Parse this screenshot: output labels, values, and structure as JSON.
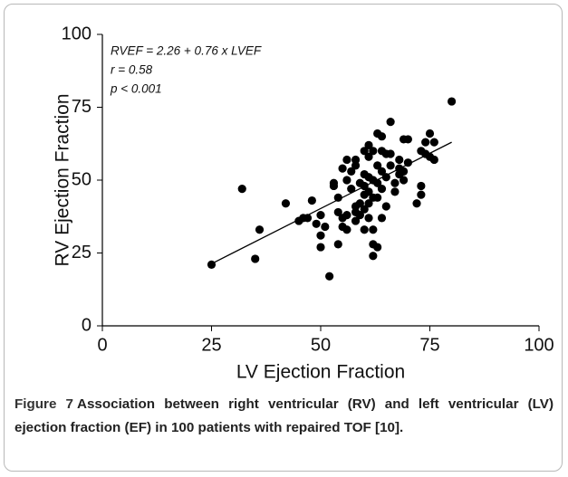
{
  "chart_data": {
    "type": "scatter",
    "x_label": "LV Ejection Fraction",
    "y_label": "RV Ejection Fraction",
    "annotations": [
      "RVEF = 2.26 + 0.76 x LVEF",
      "r = 0.58",
      "p < 0.001"
    ],
    "xlim": [
      0,
      100
    ],
    "ylim": [
      0,
      100
    ],
    "xticks": [
      0,
      25,
      50,
      75,
      100
    ],
    "yticks": [
      0,
      25,
      50,
      75,
      100
    ],
    "color": "#000000",
    "x": [
      25,
      32,
      35,
      36,
      42,
      45,
      46,
      47,
      48,
      49,
      50,
      50,
      50,
      51,
      52,
      53,
      53,
      54,
      54,
      54,
      55,
      55,
      55,
      56,
      56,
      56,
      56,
      57,
      57,
      58,
      58,
      58,
      58,
      58,
      59,
      59,
      59,
      60,
      60,
      60,
      60,
      60,
      60,
      61,
      61,
      61,
      61,
      61,
      61,
      62,
      62,
      62,
      62,
      62,
      62,
      63,
      63,
      63,
      63,
      63,
      64,
      64,
      64,
      64,
      64,
      65,
      65,
      65,
      66,
      66,
      66,
      67,
      67,
      68,
      68,
      68,
      69,
      69,
      69,
      70,
      70,
      72,
      73,
      73,
      73,
      74,
      74,
      75,
      75,
      76,
      76,
      80
    ],
    "values": [
      21,
      47,
      23,
      33,
      42,
      36,
      37,
      37,
      43,
      35,
      31,
      38,
      27,
      34,
      17,
      48,
      49,
      44,
      39,
      28,
      37,
      34,
      54,
      57,
      50,
      38,
      33,
      53,
      47,
      57,
      55,
      41,
      39,
      36,
      49,
      42,
      38,
      60,
      52,
      48,
      45,
      40,
      33,
      62,
      58,
      51,
      46,
      42,
      37,
      60,
      50,
      44,
      33,
      28,
      24,
      66,
      55,
      49,
      44,
      27,
      65,
      60,
      53,
      47,
      37,
      59,
      51,
      41,
      70,
      59,
      55,
      49,
      46,
      57,
      54,
      52,
      64,
      53,
      50,
      64,
      56,
      42,
      48,
      45,
      60,
      63,
      59,
      66,
      58,
      63,
      57,
      77
    ],
    "trendline": {
      "x": [
        25,
        80
      ],
      "y": [
        21.3,
        63
      ]
    }
  },
  "caption": {
    "label": "Figure 7",
    "text": "Association between right ventricular (RV) and left ventricular (LV) ejection fraction (EF) in 100 patients with repaired TOF [10]."
  }
}
